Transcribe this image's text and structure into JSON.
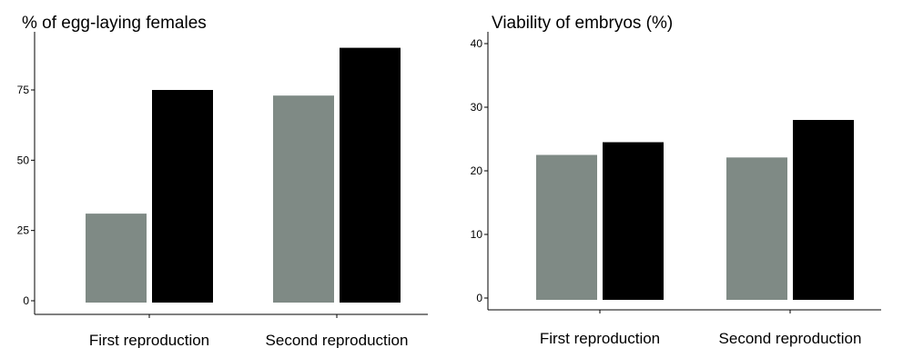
{
  "chart_data": [
    {
      "type": "bar",
      "title": "% of egg-laying females",
      "xlabel": "",
      "ylabel": "",
      "categories": [
        "First reproduction",
        "Second reproduction"
      ],
      "series": [
        {
          "values": [
            31,
            73
          ],
          "color": "#7f8a85"
        },
        {
          "values": [
            75,
            90
          ],
          "color": "#000000"
        }
      ],
      "ylim": [
        0,
        95
      ],
      "yticks": [
        0,
        25,
        50,
        75
      ],
      "grid": false,
      "legend": "none"
    },
    {
      "type": "bar",
      "title": "Viability of embryos (%)",
      "xlabel": "",
      "ylabel": "",
      "categories": [
        "First reproduction",
        "Second reproduction"
      ],
      "series": [
        {
          "values": [
            22.5,
            22.1
          ],
          "color": "#7f8a85"
        },
        {
          "values": [
            24.5,
            28
          ],
          "color": "#000000"
        }
      ],
      "ylim": [
        0,
        42
      ],
      "yticks": [
        0,
        10,
        20,
        30,
        40
      ],
      "grid": false,
      "legend": "none"
    }
  ]
}
